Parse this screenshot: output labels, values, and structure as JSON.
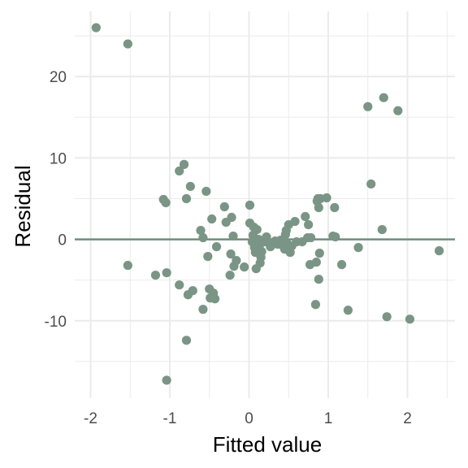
{
  "chart_data": {
    "type": "scatter",
    "title": "",
    "xlabel": "Fitted value",
    "ylabel": "Residual",
    "xlim": [
      -2.2,
      2.6
    ],
    "ylim": [
      -19.5,
      28
    ],
    "x_ticks": [
      -2,
      -1,
      0,
      1,
      2
    ],
    "x_tick_labels": [
      "-2",
      "-1",
      "0",
      "1",
      "2"
    ],
    "y_ticks": [
      -10,
      0,
      10,
      20
    ],
    "y_tick_labels": [
      "-10",
      "0",
      "10",
      "20"
    ],
    "grid": true,
    "reference_line": 0,
    "colors": {
      "points": "#7a9585",
      "line": "#6e8e7e",
      "grid": "#ebebeb"
    },
    "points": [
      [
        -1.93,
        26.0
      ],
      [
        -1.53,
        24.0
      ],
      [
        -1.53,
        -3.2
      ],
      [
        -1.18,
        -4.4
      ],
      [
        -1.08,
        4.9
      ],
      [
        -1.05,
        4.5
      ],
      [
        -1.04,
        -4.1
      ],
      [
        -1.04,
        -17.3
      ],
      [
        -0.88,
        8.4
      ],
      [
        -0.88,
        -5.6
      ],
      [
        -0.82,
        9.2
      ],
      [
        -0.79,
        5.0
      ],
      [
        -0.79,
        -12.4
      ],
      [
        -0.77,
        -6.8
      ],
      [
        -0.74,
        6.5
      ],
      [
        -0.71,
        -6.3
      ],
      [
        -0.61,
        1.1
      ],
      [
        -0.58,
        0.2
      ],
      [
        -0.58,
        -8.6
      ],
      [
        -0.54,
        5.9
      ],
      [
        -0.52,
        -2.1
      ],
      [
        -0.5,
        -6.1
      ],
      [
        -0.49,
        -7.2
      ],
      [
        -0.47,
        2.5
      ],
      [
        -0.45,
        -6.6
      ],
      [
        -0.43,
        -7.3
      ],
      [
        -0.41,
        -0.9
      ],
      [
        -0.31,
        4.0
      ],
      [
        -0.29,
        2.1
      ],
      [
        -0.24,
        -4.4
      ],
      [
        -0.23,
        -1.8
      ],
      [
        -0.22,
        2.7
      ],
      [
        -0.2,
        0.4
      ],
      [
        -0.19,
        -3.3
      ],
      [
        -0.16,
        -2.6
      ],
      [
        -0.06,
        -3.4
      ],
      [
        0.01,
        4.2
      ],
      [
        0.01,
        2.0
      ],
      [
        0.04,
        -0.3
      ],
      [
        0.05,
        0.5
      ],
      [
        0.06,
        1.5
      ],
      [
        0.07,
        -1.0
      ],
      [
        0.08,
        -1.6
      ],
      [
        0.09,
        -3.6
      ],
      [
        0.1,
        1.2
      ],
      [
        0.12,
        0.0
      ],
      [
        0.13,
        -0.8
      ],
      [
        0.14,
        -2.9
      ],
      [
        0.15,
        -2.2
      ],
      [
        0.16,
        -1.5
      ],
      [
        0.2,
        -0.3
      ],
      [
        0.22,
        0.3
      ],
      [
        0.27,
        -0.9
      ],
      [
        0.3,
        -0.5
      ],
      [
        0.33,
        -0.2
      ],
      [
        0.36,
        -0.6
      ],
      [
        0.38,
        -0.4
      ],
      [
        0.4,
        -0.1
      ],
      [
        0.42,
        -0.7
      ],
      [
        0.44,
        0.0
      ],
      [
        0.45,
        -1.2
      ],
      [
        0.46,
        0.6
      ],
      [
        0.47,
        1.1
      ],
      [
        0.48,
        -0.5
      ],
      [
        0.5,
        1.8
      ],
      [
        0.52,
        -1.6
      ],
      [
        0.54,
        -0.8
      ],
      [
        0.58,
        2.2
      ],
      [
        0.6,
        -0.3
      ],
      [
        0.67,
        -0.3
      ],
      [
        0.71,
        2.8
      ],
      [
        0.74,
        0.2
      ],
      [
        0.75,
        1.8
      ],
      [
        0.77,
        -3.1
      ],
      [
        0.78,
        0.2
      ],
      [
        0.84,
        -8.0
      ],
      [
        0.85,
        -2.8
      ],
      [
        0.86,
        4.7
      ],
      [
        0.87,
        5.0
      ],
      [
        0.88,
        -4.9
      ],
      [
        0.88,
        3.9
      ],
      [
        0.89,
        -1.7
      ],
      [
        0.9,
        5.0
      ],
      [
        0.98,
        5.1
      ],
      [
        1.06,
        0.4
      ],
      [
        1.08,
        3.9
      ],
      [
        1.09,
        0.3
      ],
      [
        1.17,
        -3.1
      ],
      [
        1.25,
        -8.7
      ],
      [
        1.38,
        -1.0
      ],
      [
        1.5,
        16.3
      ],
      [
        1.54,
        6.8
      ],
      [
        1.68,
        1.2
      ],
      [
        1.7,
        17.4
      ],
      [
        1.74,
        -9.5
      ],
      [
        1.88,
        15.8
      ],
      [
        2.03,
        -9.8
      ],
      [
        2.4,
        -1.4
      ]
    ]
  }
}
